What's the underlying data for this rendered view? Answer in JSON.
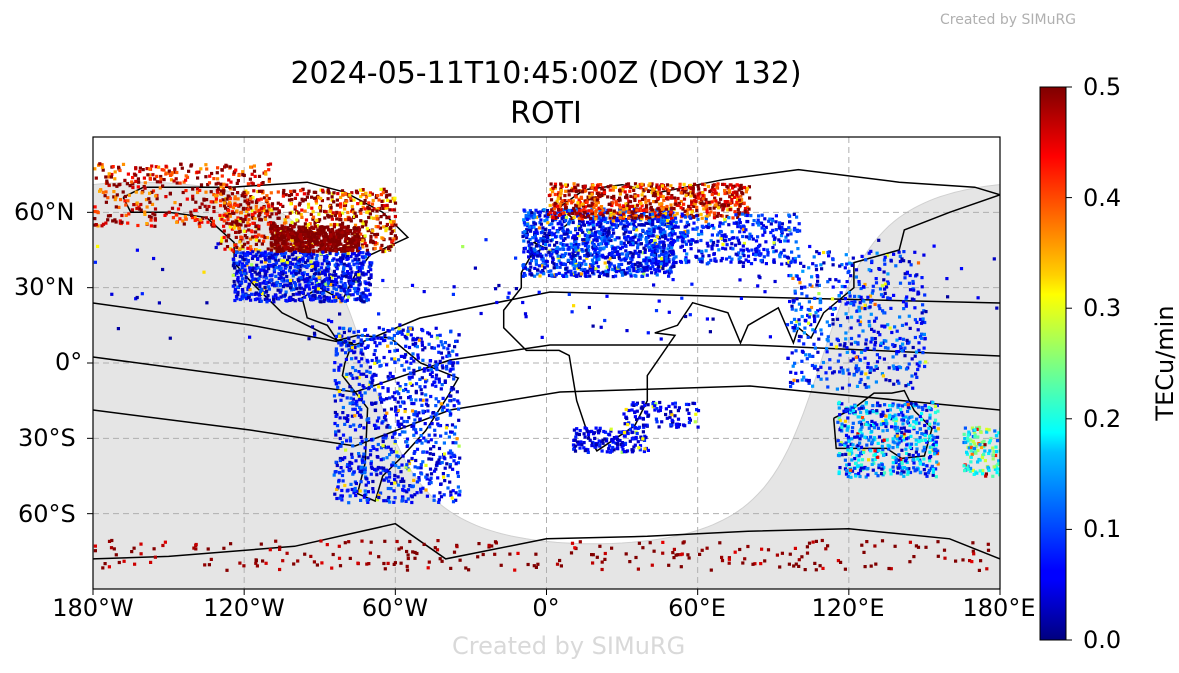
{
  "watermark": "Created by SIMuRG",
  "chart_data": {
    "type": "scatter",
    "title": [
      "2024-05-11T10:45:00Z (DOY 132)",
      "ROTI"
    ],
    "projection": "plate-carree",
    "x_ticks": [
      "180°W",
      "120°W",
      "60°W",
      "0°",
      "60°E",
      "120°E",
      "180°E"
    ],
    "y_ticks": [
      "60°N",
      "30°N",
      "0°",
      "30°S",
      "60°S"
    ],
    "xlim": [
      -180,
      180
    ],
    "ylim": [
      -90,
      90
    ],
    "grid": true,
    "night_shading": true,
    "subsolar_point": {
      "lon": 18.75,
      "lat": 18
    },
    "colorbar": {
      "colormap": "jet",
      "range": [
        0,
        0.5
      ],
      "ticks": [
        "0.0",
        "0.1",
        "0.2",
        "0.3",
        "0.4",
        "0.5"
      ],
      "label": "TECu/min",
      "placement": "right"
    },
    "night_color": "#e5e5e5"
  }
}
